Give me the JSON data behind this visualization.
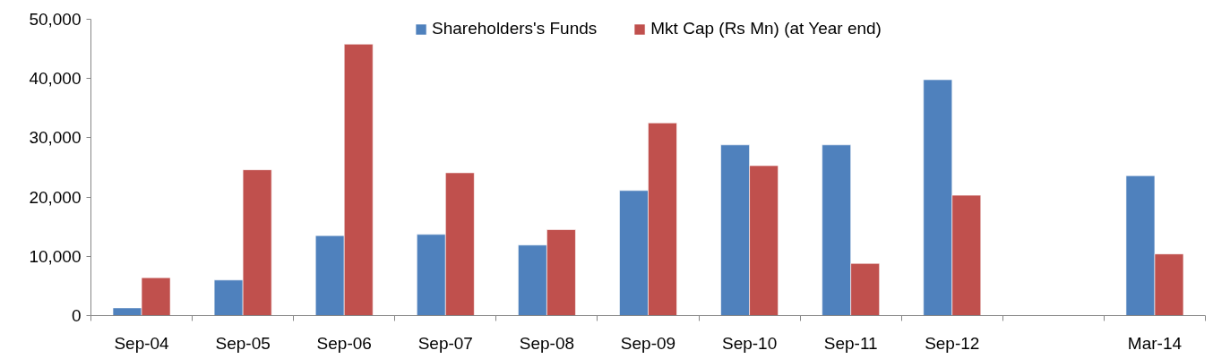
{
  "chart_data": {
    "type": "bar",
    "categories": [
      "Sep-04",
      "Sep-05",
      "Sep-06",
      "Sep-07",
      "Sep-08",
      "Sep-09",
      "Sep-10",
      "Sep-11",
      "Sep-12",
      null,
      "Mar-14"
    ],
    "series": [
      {
        "name": "Shareholders's Funds",
        "color": "#4f81bd",
        "values": [
          1300,
          6000,
          13500,
          13700,
          11900,
          21100,
          28800,
          28800,
          39800,
          null,
          23600
        ]
      },
      {
        "name": "Mkt Cap (Rs Mn) (at Year end)",
        "color": "#c0504d",
        "values": [
          6400,
          24600,
          45800,
          24100,
          14500,
          32500,
          25300,
          8800,
          20300,
          null,
          10400
        ]
      }
    ],
    "ylim": [
      0,
      50000
    ],
    "yticks": [
      0,
      {
        "value": 10000,
        "label": "10,000"
      },
      {
        "value": 20000,
        "label": "20,000"
      },
      {
        "value": 30000,
        "label": "30,000"
      },
      {
        "value": 40000,
        "label": "40,000"
      },
      {
        "value": 50000,
        "label": "50,000"
      }
    ],
    "grid": false,
    "legend": "top"
  }
}
